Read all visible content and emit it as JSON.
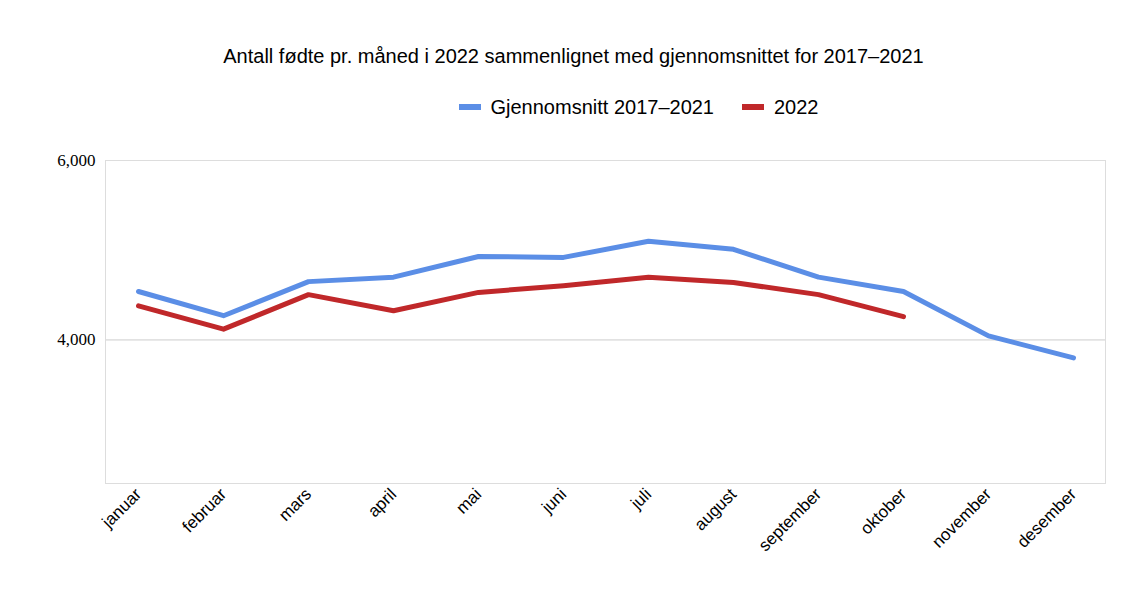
{
  "chart_data": {
    "type": "line",
    "title": "Antall fødte pr. måned i 2022 sammenlignet med gjennomsnittet for 2017–2021",
    "categories": [
      "januar",
      "februar",
      "mars",
      "april",
      "mai",
      "juni",
      "juli",
      "august",
      "september",
      "oktober",
      "november",
      "desember"
    ],
    "series": [
      {
        "name": "Gjennomsnitt 2017–2021",
        "color": "#5b8ee6",
        "values": [
          4540,
          4270,
          4650,
          4700,
          4930,
          4920,
          5100,
          5010,
          4700,
          4540,
          4045,
          3800
        ]
      },
      {
        "name": "2022",
        "color": "#c0282a",
        "values": [
          4380,
          4120,
          4505,
          4325,
          4530,
          4605,
          4700,
          4640,
          4505,
          4260,
          null,
          null
        ]
      }
    ],
    "ylim": [
      2400,
      6000
    ],
    "yticks": [
      4000,
      6000
    ],
    "grid": true,
    "legend": "top"
  }
}
